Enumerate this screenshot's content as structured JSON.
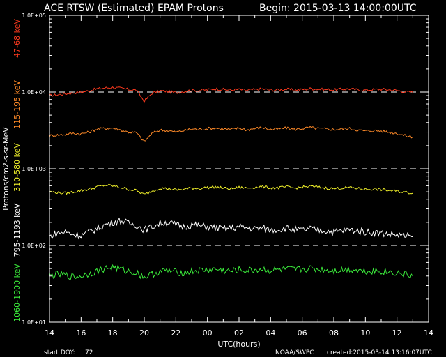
{
  "header": {
    "title": "ACE RTSW (Estimated) EPAM Protons",
    "begin": "Begin: 2015-03-13 14:00:00UTC"
  },
  "footer": {
    "start_doy_label": "start DOY:",
    "start_doy_value": "72",
    "source": "NOAA/SWPC",
    "created": "created:2015-03-14 13:16:07UTC"
  },
  "colors": {
    "background": "#000000",
    "axes": "#ffffff",
    "dashed_decades": "#ffffff"
  },
  "chart_data": {
    "type": "line",
    "ylabel": "Protons/cm2-s-sr-MeV",
    "xlabel": "UTC(hours)",
    "yscale": "log",
    "ylim": [
      10,
      100000
    ],
    "x_ticks": [
      "14",
      "16",
      "18",
      "20",
      "22",
      "00",
      "02",
      "04",
      "06",
      "08",
      "10",
      "12",
      "14"
    ],
    "y_ticks": [
      "1.0E+05",
      "1.0E+04",
      "1.0E+03",
      "1.0E+02",
      "1.0E+01"
    ],
    "dashed_lines_at": [
      10000,
      1000,
      100
    ],
    "x_hours": [
      0,
      0.5,
      1,
      1.5,
      2,
      2.5,
      3,
      3.5,
      4,
      4.5,
      5,
      5.5,
      6,
      6.5,
      7,
      7.5,
      8,
      8.5,
      9,
      9.5,
      10,
      10.5,
      11,
      11.5,
      12,
      12.5,
      13,
      13.5,
      14,
      14.5,
      15,
      15.5,
      16,
      16.5,
      17,
      17.5,
      18,
      18.5,
      19,
      19.5,
      20,
      20.5,
      21,
      21.5,
      22,
      22.5,
      23
    ],
    "series": [
      {
        "name": "47-68 keV",
        "color": "#ff3a1e",
        "values": [
          9000,
          9200,
          9500,
          9800,
          10000,
          10400,
          11000,
          11300,
          11500,
          11200,
          10800,
          10600,
          7600,
          9700,
          10400,
          10200,
          9800,
          10200,
          10600,
          10500,
          10700,
          11000,
          10800,
          10600,
          10800,
          10500,
          10800,
          11000,
          10600,
          10700,
          10900,
          10600,
          10800,
          11100,
          10900,
          10800,
          10700,
          10900,
          11000,
          10700,
          10600,
          10800,
          10900,
          10700,
          10500,
          10100,
          9900
        ]
      },
      {
        "name": "115-195 keV",
        "color": "#ff8a28",
        "values": [
          2700,
          2750,
          2800,
          2900,
          2850,
          3000,
          3300,
          3350,
          3400,
          3200,
          3000,
          2950,
          2250,
          2900,
          3200,
          3150,
          3000,
          3150,
          3300,
          3250,
          3350,
          3400,
          3300,
          3250,
          3400,
          3200,
          3350,
          3450,
          3250,
          3300,
          3400,
          3250,
          3350,
          3450,
          3350,
          3300,
          3250,
          3300,
          3350,
          3200,
          3100,
          3150,
          3100,
          3000,
          2900,
          2700,
          2600
        ]
      },
      {
        "name": "310-580 keV",
        "color": "#f2f22a",
        "values": [
          500,
          490,
          480,
          500,
          520,
          540,
          580,
          610,
          600,
          570,
          540,
          520,
          460,
          510,
          560,
          550,
          530,
          540,
          560,
          555,
          570,
          580,
          560,
          550,
          570,
          560,
          575,
          585,
          560,
          565,
          580,
          560,
          575,
          590,
          575,
          560,
          550,
          560,
          570,
          555,
          540,
          545,
          535,
          520,
          510,
          495,
          480
        ]
      },
      {
        "name": "795-1193 keV",
        "color": "#ffffff",
        "values": [
          130,
          145,
          150,
          140,
          135,
          150,
          165,
          185,
          200,
          210,
          195,
          185,
          160,
          175,
          195,
          200,
          185,
          175,
          185,
          180,
          175,
          170,
          165,
          168,
          175,
          170,
          165,
          168,
          160,
          162,
          168,
          160,
          158,
          165,
          160,
          155,
          150,
          155,
          160,
          155,
          150,
          148,
          145,
          140,
          138,
          132,
          130
        ]
      },
      {
        "name": "1060-1900 keV",
        "color": "#3cf03c",
        "values": [
          40,
          42,
          41,
          39,
          40,
          43,
          46,
          50,
          52,
          49,
          46,
          44,
          39,
          42,
          46,
          47,
          45,
          44,
          46,
          47,
          48,
          49,
          47,
          46,
          48,
          47,
          48,
          49,
          47,
          48,
          49,
          48,
          49,
          50,
          49,
          48,
          47,
          48,
          49,
          48,
          46,
          47,
          46,
          45,
          44,
          42,
          40
        ]
      }
    ]
  }
}
